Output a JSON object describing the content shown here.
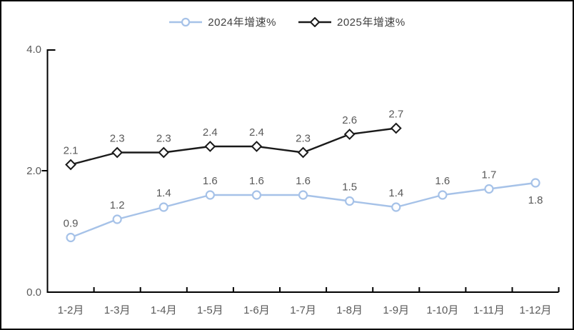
{
  "chart_data": {
    "type": "line",
    "categories": [
      "1-2月",
      "1-3月",
      "1-4月",
      "1-5月",
      "1-6月",
      "1-7月",
      "1-8月",
      "1-9月",
      "1-10月",
      "1-11月",
      "1-12月"
    ],
    "series": [
      {
        "name": "2024年增速%",
        "marker": "circle",
        "color": "#A6C2E8",
        "values": [
          0.9,
          1.2,
          1.4,
          1.6,
          1.6,
          1.6,
          1.5,
          1.4,
          1.6,
          1.7,
          1.8
        ],
        "labels_below_indices": [
          10
        ]
      },
      {
        "name": "2025年增速%",
        "marker": "diamond",
        "color": "#1A1A1A",
        "values": [
          2.1,
          2.3,
          2.3,
          2.4,
          2.4,
          2.3,
          2.6,
          2.7
        ],
        "labels_below_indices": []
      }
    ],
    "title": "",
    "xlabel": "",
    "ylabel": "",
    "ylim": [
      0.0,
      4.0
    ],
    "yticks": [
      "0.0",
      "2.0",
      "4.0"
    ],
    "grid": false,
    "legend_position": "top-center",
    "show_data_labels": true,
    "colors": {
      "data_label": "#595959",
      "axis_label": "#595959",
      "axis_line": "#000000",
      "legend_text": "#404040",
      "marker_fill": "#FFFFFF"
    }
  }
}
